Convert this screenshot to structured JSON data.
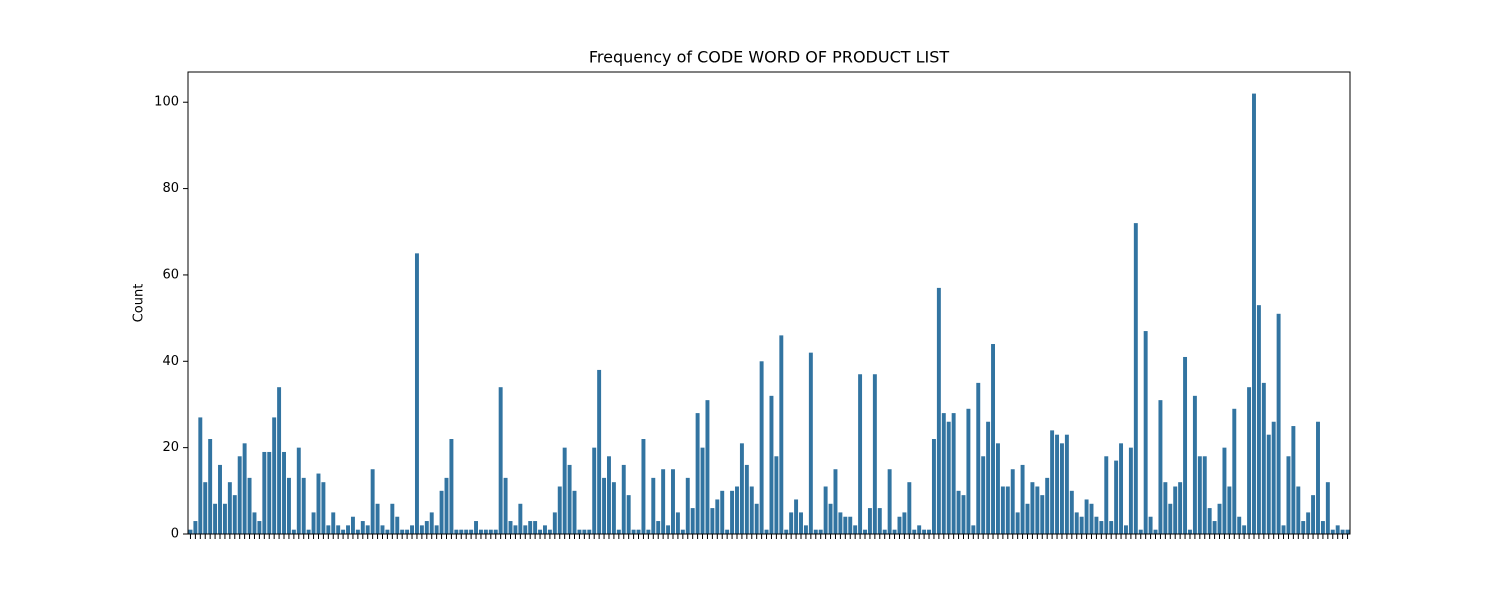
{
  "chart_data": {
    "type": "bar",
    "title": "Frequency of CODE WORD OF PRODUCT LIST",
    "ylabel": "Count",
    "color": "#3274a1",
    "categories": [
      null,
      null,
      null,
      null,
      null,
      null,
      null,
      null,
      null,
      null,
      null,
      null,
      null,
      null,
      null,
      null,
      null,
      null,
      null,
      null,
      null,
      null,
      null,
      null,
      null,
      null,
      null,
      null,
      null,
      null,
      null,
      null,
      null,
      null,
      null,
      null,
      null,
      null,
      null,
      null,
      null,
      null,
      null,
      null,
      null,
      null,
      null,
      null,
      null,
      null,
      null,
      null,
      null,
      null,
      null,
      null,
      null,
      null,
      null,
      null,
      null,
      null,
      null,
      null,
      null,
      null,
      null,
      null,
      null,
      null,
      null,
      null,
      null,
      null,
      null,
      null,
      null,
      null,
      null,
      null,
      null,
      null,
      null,
      null,
      null,
      null,
      null,
      null,
      null,
      null,
      null,
      null,
      null,
      null,
      null,
      null,
      null,
      null,
      null,
      null,
      null,
      null,
      null,
      null,
      null,
      null,
      null,
      null,
      null,
      null,
      null,
      null,
      null,
      null,
      null,
      null,
      null,
      null,
      null,
      null,
      null,
      null,
      null,
      null,
      null,
      null,
      null,
      null,
      null,
      null,
      null,
      null,
      null,
      null,
      null,
      null,
      null,
      null,
      null,
      null,
      null,
      null,
      null,
      null,
      null,
      null,
      null,
      null,
      null,
      null,
      null,
      null,
      null,
      null,
      null,
      null,
      null,
      null,
      null,
      null,
      null,
      null,
      null,
      null,
      null,
      null,
      null,
      null,
      null,
      null,
      null,
      null,
      null,
      null,
      null,
      null,
      null,
      null,
      null,
      null,
      null,
      null,
      null,
      null,
      null,
      null,
      null,
      null,
      null,
      null,
      null,
      null,
      null,
      null,
      null,
      null,
      null,
      null,
      null,
      null,
      null,
      null,
      null,
      null,
      null,
      null,
      null,
      null,
      null,
      null,
      null,
      null,
      null,
      null,
      null,
      null,
      null,
      null,
      null,
      null,
      null,
      null,
      null,
      null,
      null,
      null,
      null,
      null,
      null,
      null,
      null,
      null,
      null,
      null,
      null,
      null
    ],
    "values": [
      1,
      3,
      27,
      12,
      22,
      7,
      16,
      7,
      12,
      9,
      18,
      21,
      13,
      5,
      3,
      19,
      19,
      27,
      34,
      19,
      13,
      1,
      20,
      13,
      1,
      5,
      14,
      12,
      2,
      5,
      2,
      1,
      2,
      4,
      1,
      3,
      2,
      15,
      7,
      2,
      1,
      7,
      4,
      1,
      1,
      2,
      65,
      2,
      3,
      5,
      2,
      10,
      13,
      22,
      1,
      1,
      1,
      1,
      3,
      1,
      1,
      1,
      1,
      34,
      13,
      3,
      2,
      7,
      2,
      3,
      3,
      1,
      2,
      1,
      5,
      11,
      20,
      16,
      10,
      1,
      1,
      1,
      20,
      38,
      13,
      18,
      12,
      1,
      16,
      9,
      1,
      1,
      22,
      1,
      13,
      3,
      15,
      2,
      15,
      5,
      1,
      13,
      6,
      28,
      20,
      31,
      6,
      8,
      10,
      1,
      10,
      11,
      21,
      16,
      11,
      7,
      40,
      1,
      32,
      18,
      46,
      1,
      5,
      8,
      5,
      2,
      42,
      1,
      1,
      11,
      7,
      15,
      5,
      4,
      4,
      2,
      37,
      1,
      6,
      37,
      6,
      1,
      15,
      1,
      4,
      5,
      12,
      1,
      2,
      1,
      1,
      22,
      57,
      28,
      26,
      28,
      10,
      9,
      29,
      2,
      35,
      18,
      26,
      44,
      21,
      11,
      11,
      15,
      5,
      16,
      7,
      12,
      11,
      9,
      13,
      24,
      23,
      21,
      23,
      10,
      5,
      4,
      8,
      7,
      4,
      3,
      18,
      3,
      17,
      21,
      2,
      20,
      72,
      1,
      47,
      4,
      1,
      31,
      12,
      7,
      11,
      12,
      41,
      1,
      32,
      18,
      18,
      6,
      3,
      7,
      20,
      11,
      29,
      4,
      2,
      34,
      102,
      53,
      35,
      23,
      26,
      51,
      2,
      18,
      25,
      11,
      3,
      5,
      9,
      26,
      3,
      12,
      1,
      2,
      1,
      1
    ],
    "ylim": [
      0,
      107
    ],
    "yticks": [
      0,
      20,
      40,
      60,
      80,
      100
    ],
    "grid": false
  }
}
